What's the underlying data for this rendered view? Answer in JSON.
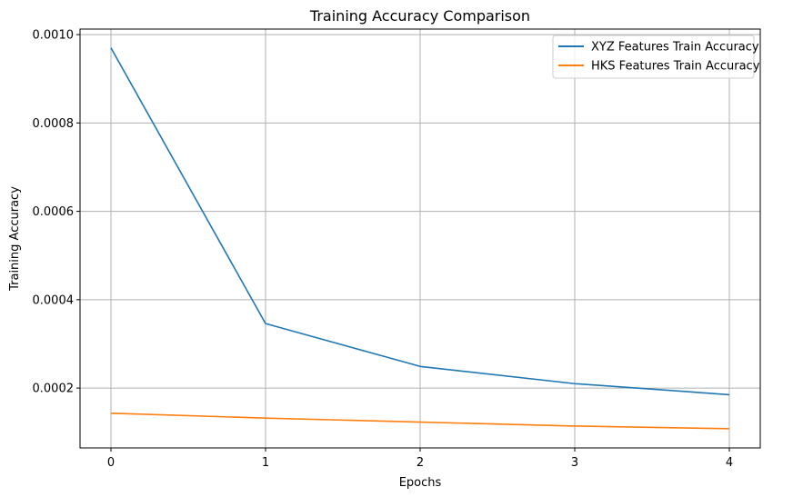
{
  "chart_data": {
    "type": "line",
    "title": "Training Accuracy Comparison",
    "xlabel": "Epochs",
    "ylabel": "Training Accuracy",
    "x": [
      0,
      1,
      2,
      3,
      4
    ],
    "xticks": [
      "0",
      "1",
      "2",
      "3",
      "4"
    ],
    "yticks": [
      "0.0002",
      "0.0004",
      "0.0006",
      "0.0008",
      "0.0010"
    ],
    "xlim": [
      -0.2,
      4.2
    ],
    "ylim": [
      6.45e-05,
      0.0010125
    ],
    "grid": true,
    "legend_position": "top-right",
    "series": [
      {
        "name": "XYZ Features Train Accuracy",
        "color": "#1f77b4",
        "values": [
          0.00097,
          0.000346,
          0.000249,
          0.00021,
          0.000185
        ]
      },
      {
        "name": "HKS Features Train Accuracy",
        "color": "#ff7f0e",
        "values": [
          0.000143,
          0.000132,
          0.000123,
          0.000114,
          0.000108
        ]
      }
    ]
  }
}
